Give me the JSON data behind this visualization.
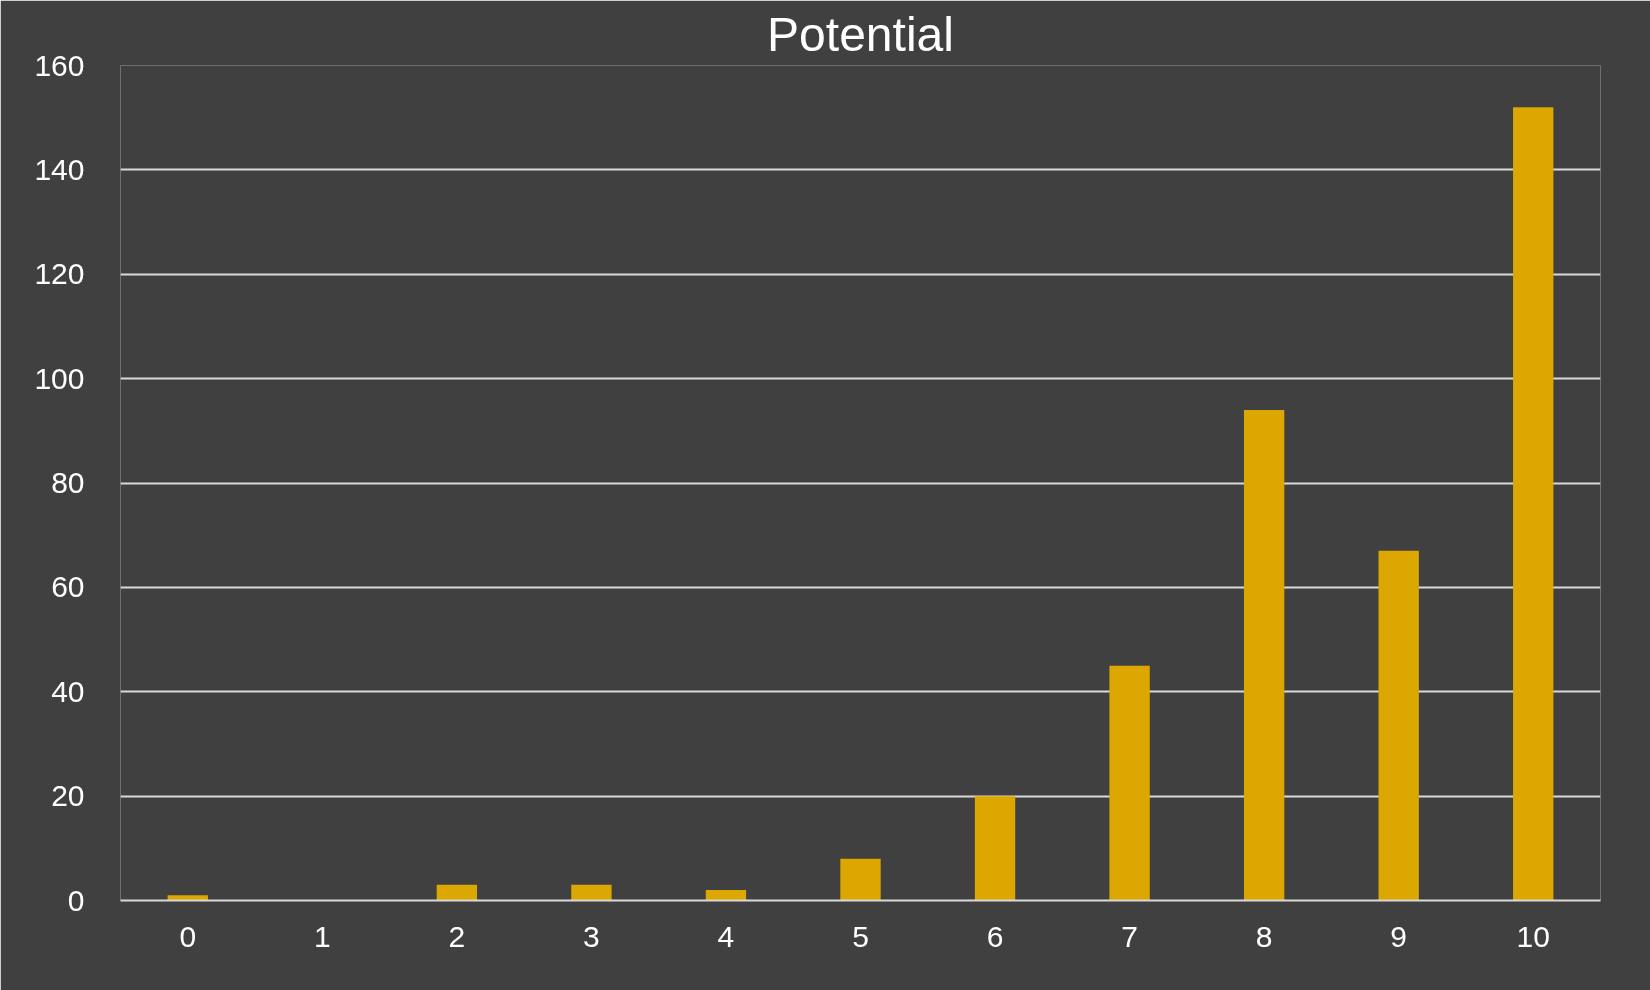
{
  "chart_data": {
    "type": "bar",
    "title": "Potential",
    "categories": [
      "0",
      "1",
      "2",
      "3",
      "4",
      "5",
      "6",
      "7",
      "8",
      "9",
      "10"
    ],
    "values": [
      1,
      0,
      3,
      3,
      2,
      8,
      20,
      45,
      94,
      67,
      152
    ],
    "color": "#dba700",
    "ylim": [
      0,
      160
    ],
    "yticks": [
      0,
      20,
      40,
      60,
      80,
      100,
      120,
      140,
      160
    ],
    "grid": "y"
  }
}
